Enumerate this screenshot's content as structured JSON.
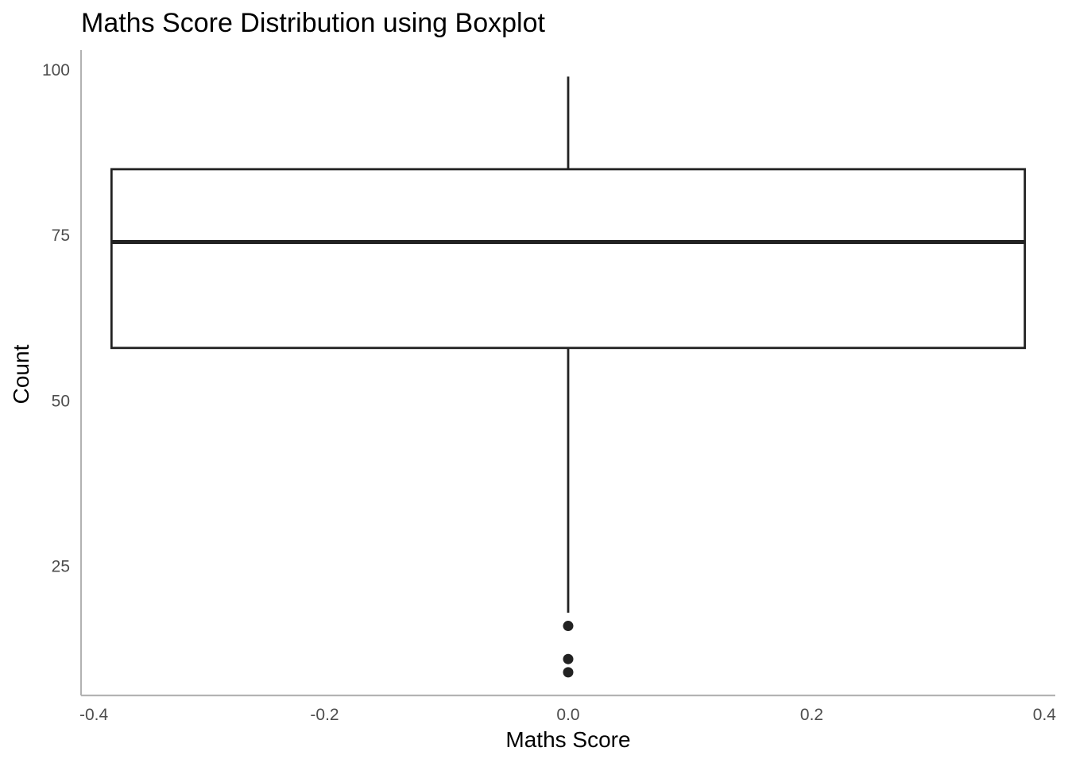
{
  "chart_data": {
    "type": "boxplot",
    "title": "Maths Score Distribution using Boxplot",
    "xlabel": "Maths Score",
    "ylabel": "Count",
    "xlim": [
      -0.4,
      0.4
    ],
    "ylim": [
      5.5,
      103
    ],
    "x_ticks": [
      -0.4,
      -0.2,
      0.0,
      0.2,
      0.4
    ],
    "x_tick_labels": [
      "-0.4",
      "-0.2",
      "0.0",
      "0.2",
      "0.4"
    ],
    "y_ticks": [
      25,
      50,
      75,
      100
    ],
    "y_tick_labels": [
      "25",
      "50",
      "75",
      "100"
    ],
    "grid": false,
    "box": {
      "x_center": 0.0,
      "x_min": -0.375,
      "x_max": 0.375,
      "whisker_low": 18,
      "q1": 58,
      "median": 74,
      "q3": 85,
      "whisker_high": 99
    },
    "outliers": [
      16,
      11,
      9
    ],
    "colors": {
      "stroke": "#222222",
      "axis": "#b3b3b3",
      "fill": "#ffffff"
    }
  }
}
